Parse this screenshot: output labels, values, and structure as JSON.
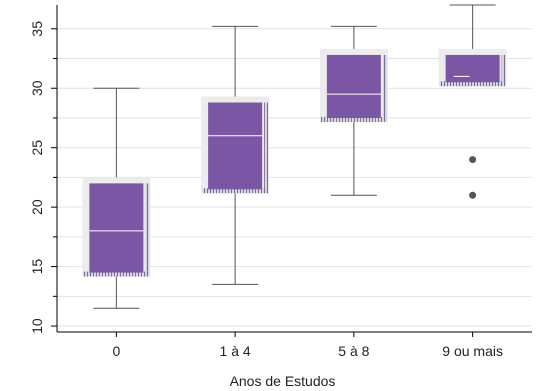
{
  "chart_data": {
    "type": "box",
    "title": "",
    "xlabel": "Anos de Estudos",
    "ylabel": "",
    "ylim": [
      9.5,
      37
    ],
    "yticks": [
      10,
      15,
      20,
      25,
      30,
      35
    ],
    "grid": {
      "horizontal": true,
      "vertical": false
    },
    "legend": "none",
    "categories": [
      "0",
      "1 à 4",
      "5 à 8",
      "9 ou mais"
    ],
    "boxes": [
      {
        "category": "0",
        "whisker_low": 11.5,
        "q1": 14.5,
        "median": 18,
        "q3": 22,
        "whisker_high": 30,
        "outliers": []
      },
      {
        "category": "1 à 4",
        "whisker_low": 13.5,
        "q1": 21.5,
        "median": 26,
        "q3": 28.8,
        "whisker_high": 35.2,
        "outliers": []
      },
      {
        "category": "5 à 8",
        "whisker_low": 21,
        "q1": 27.5,
        "median": 29.5,
        "q3": 32.8,
        "whisker_high": 35.2,
        "outliers": []
      },
      {
        "category": "9 ou mais",
        "whisker_low": 30.5,
        "q1": 30.5,
        "median": 31,
        "q3": 32.8,
        "whisker_high": 37,
        "outliers": [
          24,
          21
        ]
      }
    ],
    "colors": {
      "box_fill": "#7b56a4",
      "box_shadow": "#ecebee",
      "whisker": "#555555",
      "median": "#ffffff",
      "outlier": "#555555",
      "grid": "#e2e2e2"
    }
  }
}
